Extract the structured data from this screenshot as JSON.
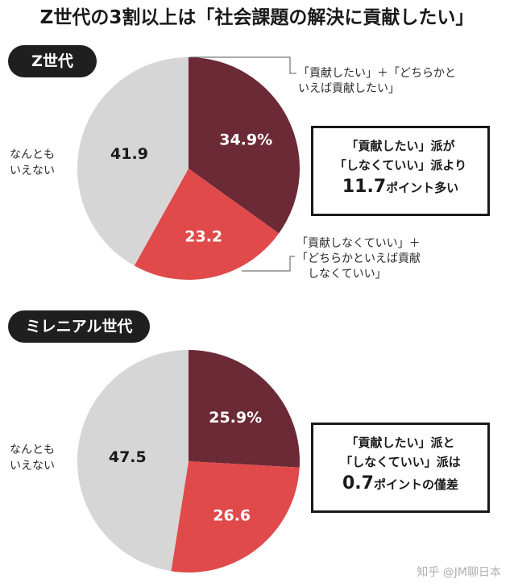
{
  "title": "Z世代の3割以上は「社会課題の解決に貢献したい」",
  "colors": {
    "contribute": "#6b2a36",
    "not_contribute": "#e04a4a",
    "neither": "#d6d6d6"
  },
  "chart_data": [
    {
      "type": "pie",
      "title": "Z世代",
      "slices": [
        {
          "label": "「貢献したい」＋「どちらかと いえば貢献したい」",
          "value": 34.9,
          "display": "34.9%"
        },
        {
          "label": "「貢献しなくていい」＋ 「どちらかといえば貢献 しなくていい」",
          "value": 23.2,
          "display": "23.2"
        },
        {
          "label": "なんとも いえない",
          "value": 41.9,
          "display": "41.9"
        }
      ]
    },
    {
      "type": "pie",
      "title": "ミレニアル世代",
      "slices": [
        {
          "label": "「貢献したい」",
          "value": 25.9,
          "display": "25.9%"
        },
        {
          "label": "「しなくていい」",
          "value": 26.6,
          "display": "26.6"
        },
        {
          "label": "なんとも いえない",
          "value": 47.5,
          "display": "47.5"
        }
      ]
    }
  ],
  "genz": {
    "pill": "Z世代",
    "callout_top": [
      "「貢献したい」＋「どちらかと",
      "いえば貢献したい」"
    ],
    "callout_bottom": [
      "「貢献しなくていい」＋",
      "「どちらかといえば貢献",
      "しなくていい」"
    ],
    "neutral": [
      "なんとも",
      "いえない"
    ],
    "box": {
      "line1": "「貢献したい」派が",
      "line2": "「しなくていい」派より",
      "num": "11.7",
      "suffix": "ポイント多い"
    }
  },
  "millennial": {
    "pill": "ミレニアル世代",
    "neutral": [
      "なんとも",
      "いえない"
    ],
    "box": {
      "line1": "「貢献したい」派と",
      "line2": "「しなくていい」派は",
      "num": "0.7",
      "suffix": "ポイントの僅差"
    }
  },
  "watermark": "知乎 @JM聊日本"
}
